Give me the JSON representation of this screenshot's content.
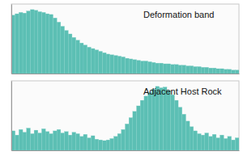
{
  "chart_data": [
    {
      "type": "bar",
      "title": "Deformation band",
      "color": "#5cbfb4",
      "ylim": [
        0,
        100
      ],
      "tick_labels": false,
      "values": [
        84,
        86,
        88,
        87,
        90,
        92,
        91,
        89,
        88,
        86,
        85,
        80,
        74,
        68,
        62,
        57,
        52,
        48,
        44,
        41,
        38,
        36,
        34,
        32,
        30,
        28,
        27,
        26,
        25,
        24,
        22,
        21,
        20,
        19,
        18,
        18,
        17,
        16,
        15,
        15,
        14,
        14,
        13,
        13,
        12,
        12,
        11,
        11,
        10,
        10,
        9,
        9,
        8,
        8,
        7,
        7,
        6,
        6,
        5,
        5
      ]
    },
    {
      "type": "bar",
      "title": "Adjacent Host Rock",
      "color": "#5cbfb4",
      "ylim": [
        0,
        100
      ],
      "tick_labels": false,
      "values": [
        28,
        22,
        30,
        26,
        32,
        24,
        29,
        25,
        31,
        27,
        24,
        28,
        30,
        25,
        27,
        22,
        26,
        24,
        20,
        23,
        18,
        21,
        16,
        15,
        14,
        15,
        17,
        20,
        24,
        30,
        38,
        47,
        56,
        64,
        72,
        78,
        83,
        88,
        92,
        90,
        91,
        86,
        80,
        72,
        62,
        52,
        42,
        34,
        28,
        24,
        22,
        25,
        20,
        23,
        18,
        22,
        17,
        20,
        15,
        18
      ]
    }
  ]
}
